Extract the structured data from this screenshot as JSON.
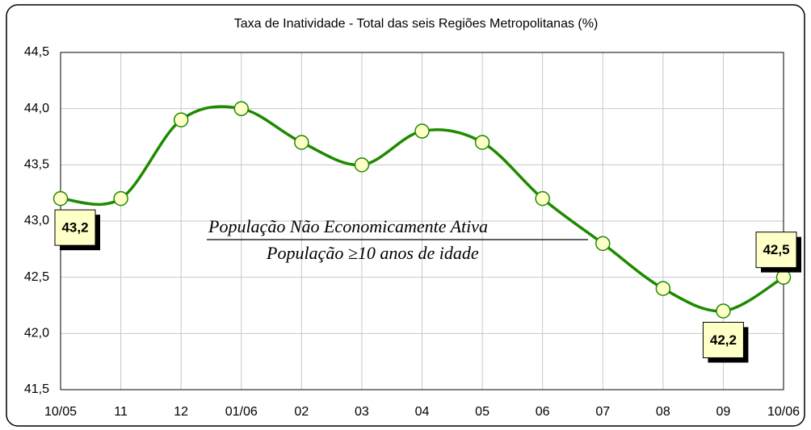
{
  "chart_data": {
    "type": "line",
    "title": "Taxa de Inatividade - Total das seis Regiões Metropolitanas  (%)",
    "categories": [
      "10/05",
      "11",
      "12",
      "01/06",
      "02",
      "03",
      "04",
      "05",
      "06",
      "07",
      "08",
      "09",
      "10/06"
    ],
    "values": [
      43.2,
      43.2,
      43.9,
      44.0,
      43.7,
      43.5,
      43.8,
      43.7,
      43.2,
      42.8,
      42.4,
      42.2,
      42.5
    ],
    "value_labels": [
      "43,2",
      null,
      null,
      null,
      null,
      null,
      null,
      null,
      null,
      null,
      null,
      "42,2",
      "42,5"
    ],
    "color": "#1e8a00",
    "marker_color": "#ffffc8",
    "ylim": [
      41.5,
      44.5
    ],
    "yticks": [
      {
        "value": 41.5,
        "label": "41,5"
      },
      {
        "value": 42.0,
        "label": "42,0"
      },
      {
        "value": 42.5,
        "label": "42,5"
      },
      {
        "value": 43.0,
        "label": "43,0"
      },
      {
        "value": 43.5,
        "label": "43,5"
      },
      {
        "value": 44.0,
        "label": "44,0"
      },
      {
        "value": 44.5,
        "label": "44,5"
      }
    ],
    "grid": true,
    "annotation": {
      "numerator": "População Não Economicamente Ativa",
      "denominator": "População ≥10 anos de idade"
    }
  }
}
